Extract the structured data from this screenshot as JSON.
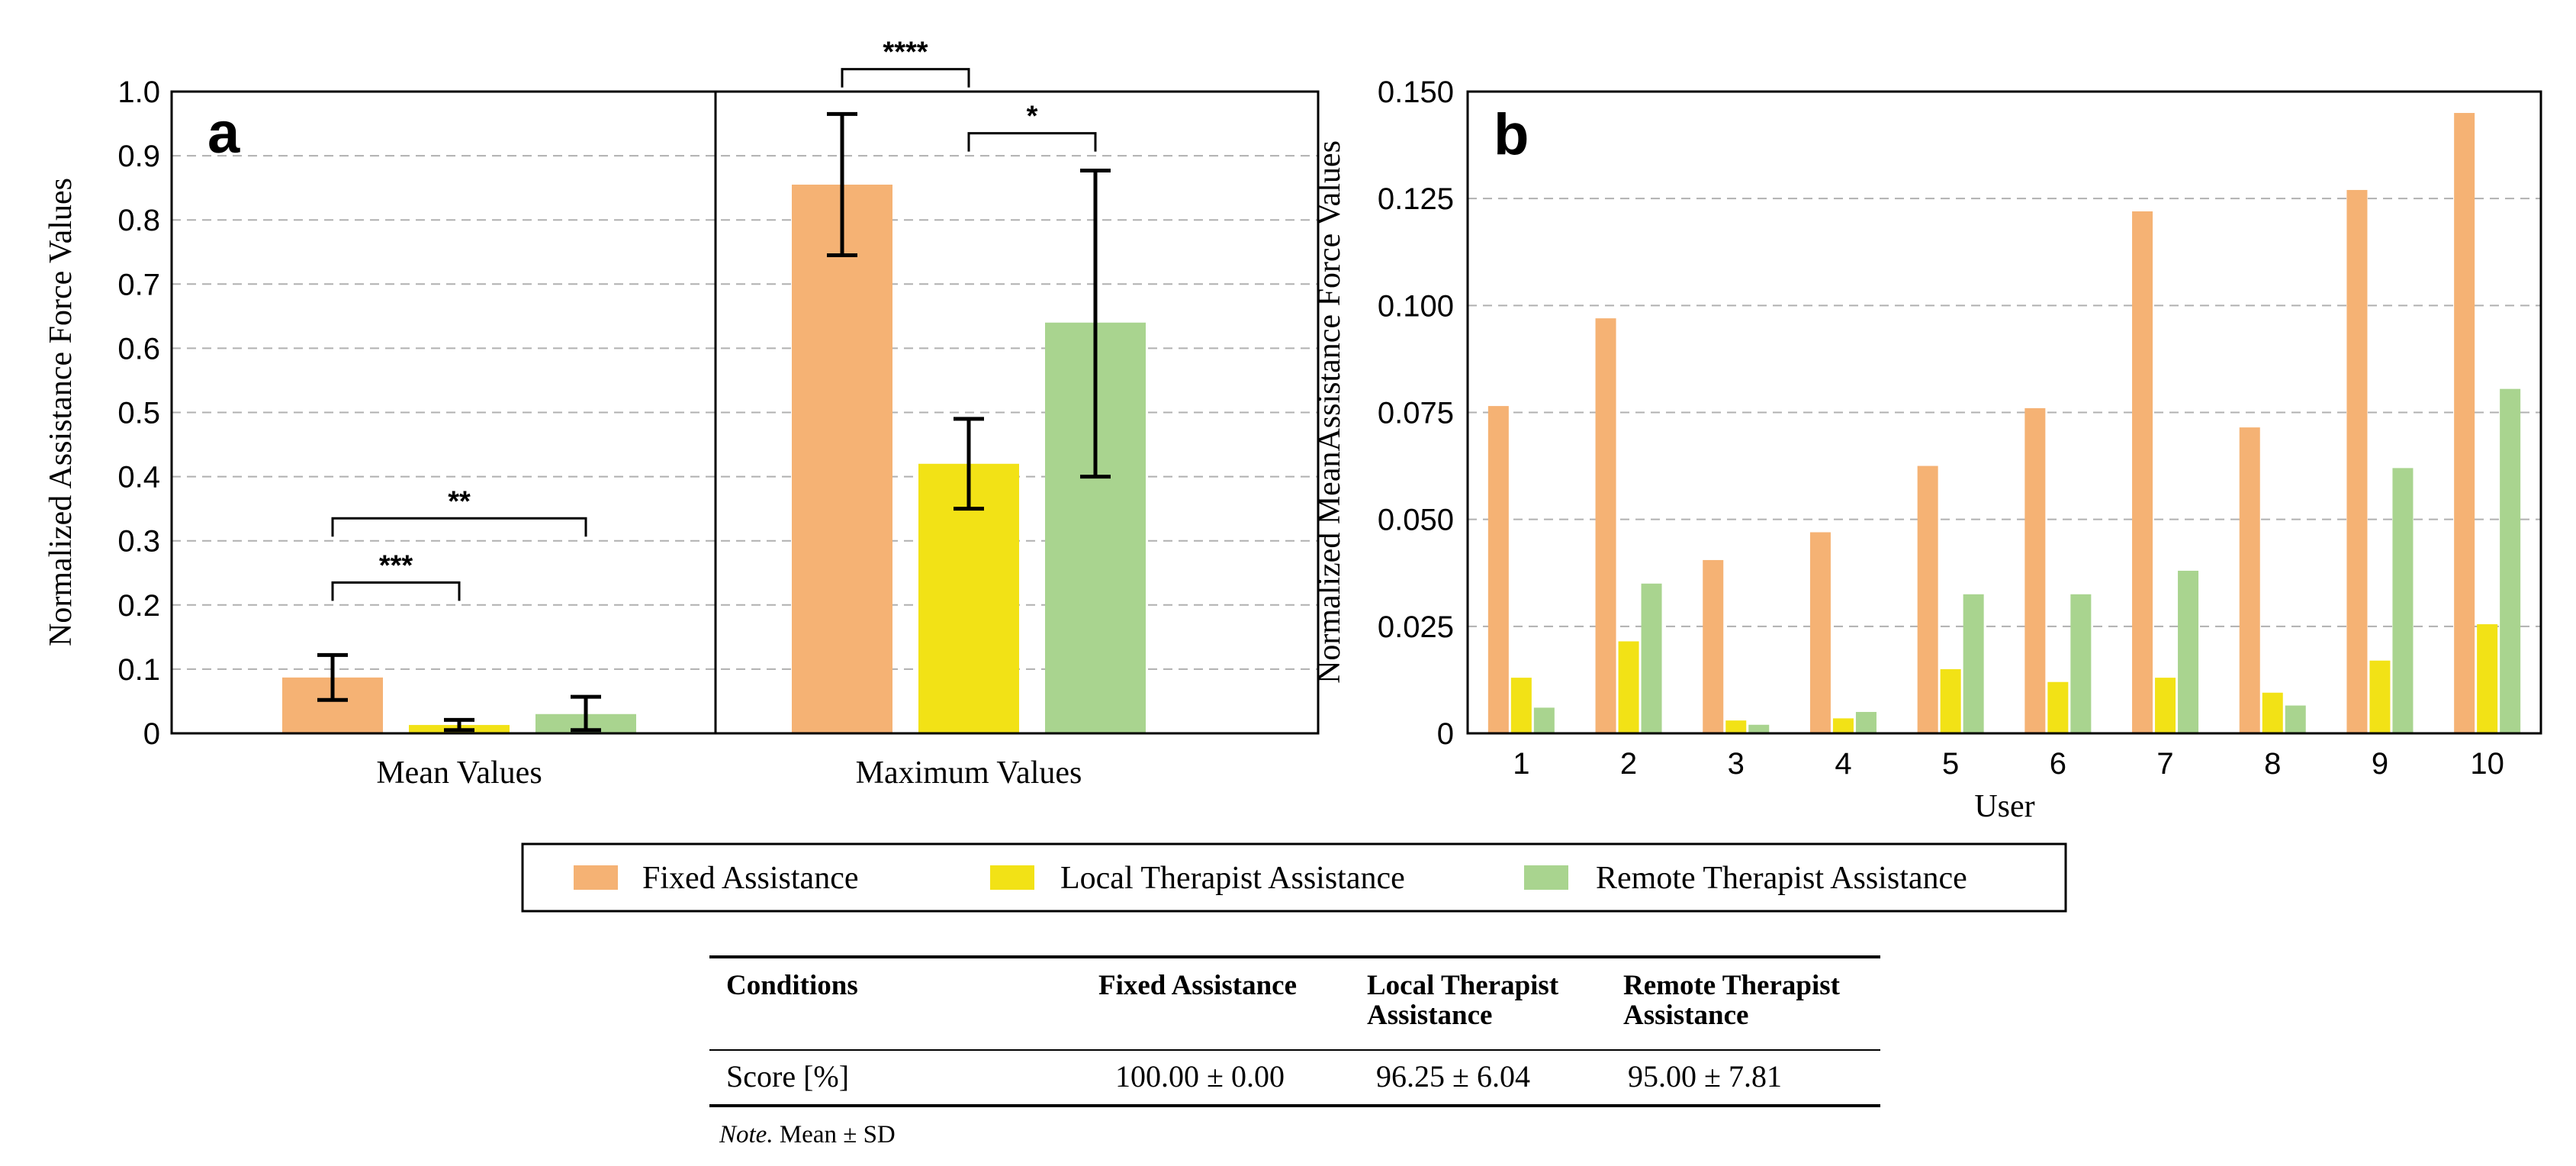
{
  "legend": [
    {
      "label": "Fixed Assistance",
      "color": "#f5b274"
    },
    {
      "label": "Local Therapist Assistance",
      "color": "#f2e216"
    },
    {
      "label": "Remote Therapist Assistance",
      "color": "#a9d48f"
    }
  ],
  "chart_data": [
    {
      "panel": "a",
      "type": "bar",
      "ylabel": "Normalized Assistance Force Values",
      "ylim": [
        0,
        1.0
      ],
      "yticks": [
        "0",
        "0.1",
        "0.2",
        "0.3",
        "0.4",
        "0.5",
        "0.6",
        "0.7",
        "0.8",
        "0.9",
        "1.0"
      ],
      "grid": true,
      "groups": [
        {
          "label": "Mean Values",
          "bars": [
            {
              "series": "Fixed Assistance",
              "value": 0.087,
              "err_low": 0.052,
              "err_high": 0.122
            },
            {
              "series": "Local Therapist Assistance",
              "value": 0.013,
              "err_low": 0.005,
              "err_high": 0.021
            },
            {
              "series": "Remote Therapist Assistance",
              "value": 0.03,
              "err_low": 0.005,
              "err_high": 0.057
            }
          ],
          "significance": [
            {
              "from": 0,
              "to": 1,
              "label": "***",
              "y": 0.235
            },
            {
              "from": 0,
              "to": 2,
              "label": "**",
              "y": 0.335
            }
          ]
        },
        {
          "label": "Maximum Values",
          "bars": [
            {
              "series": "Fixed Assistance",
              "value": 0.855,
              "err_low": 0.745,
              "err_high": 0.965
            },
            {
              "series": "Local Therapist Assistance",
              "value": 0.42,
              "err_low": 0.35,
              "err_high": 0.49
            },
            {
              "series": "Remote Therapist Assistance",
              "value": 0.64,
              "err_low": 0.4,
              "err_high": 0.877
            }
          ],
          "significance": [
            {
              "from": 0,
              "to": 1,
              "label": "****",
              "y": 1.035
            },
            {
              "from": 1,
              "to": 2,
              "label": "*",
              "y": 0.935
            }
          ]
        }
      ]
    },
    {
      "panel": "b",
      "type": "bar",
      "xlabel": "User",
      "ylabel": "Normalized MeanAssistance Force Values",
      "ylim": [
        0,
        0.15
      ],
      "yticks": [
        "0",
        "0.025",
        "0.050",
        "0.075",
        "0.100",
        "0.125",
        "0.150"
      ],
      "grid": true,
      "categories": [
        "1",
        "2",
        "3",
        "4",
        "5",
        "6",
        "7",
        "8",
        "9",
        "10"
      ],
      "series": [
        {
          "name": "Fixed Assistance",
          "values": [
            0.0765,
            0.097,
            0.0405,
            0.047,
            0.0625,
            0.076,
            0.122,
            0.0715,
            0.127,
            0.145
          ]
        },
        {
          "name": "Local Therapist Assistance",
          "values": [
            0.013,
            0.0215,
            0.003,
            0.0035,
            0.015,
            0.012,
            0.013,
            0.0095,
            0.017,
            0.0255
          ]
        },
        {
          "name": "Remote Therapist Assistance",
          "values": [
            0.006,
            0.035,
            0.002,
            0.005,
            0.0325,
            0.0325,
            0.038,
            0.0065,
            0.062,
            0.0805
          ]
        }
      ]
    }
  ],
  "table": {
    "headers": [
      [
        "Conditions"
      ],
      [
        "Fixed Assistance"
      ],
      [
        "Local Therapist",
        "Assistance"
      ],
      [
        "Remote Therapist",
        "Assistance"
      ]
    ],
    "rows": [
      [
        "Score [%]",
        "100.00 ± 0.00",
        "96.25 ± 6.04",
        "95.00 ± 7.81"
      ]
    ],
    "note_italic": "Note.",
    "note_text": " Mean ± SD"
  }
}
